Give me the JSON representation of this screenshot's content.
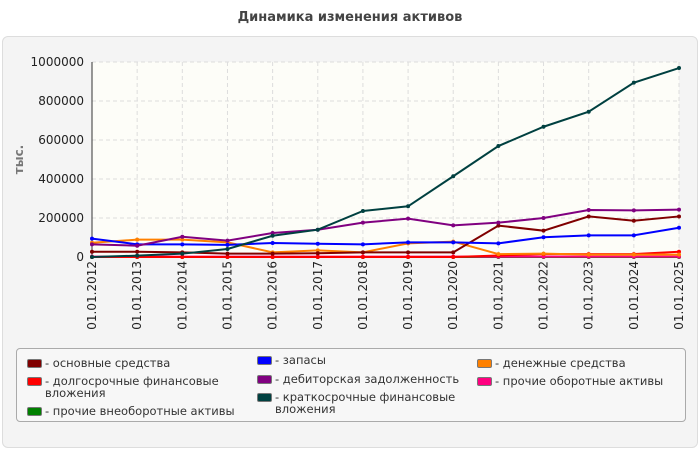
{
  "chart_data": {
    "type": "line",
    "title": "Динамика изменения активов",
    "ylabel": "тыс.",
    "xlabel": "",
    "ylim": [
      0,
      1000000
    ],
    "yticks": [
      "0",
      "200000",
      "400000",
      "600000",
      "800000",
      "1000000"
    ],
    "grid": true,
    "legend_position": "bottom",
    "categories": [
      "01.01.2012",
      "01.01.2013",
      "01.01.2014",
      "01.01.2015",
      "01.01.2016",
      "01.01.2017",
      "01.01.2018",
      "01.01.2019",
      "01.01.2020",
      "01.01.2021",
      "01.01.2022",
      "01.01.2023",
      "01.01.2024",
      "01.01.2025"
    ],
    "series": [
      {
        "name": "основные средства",
        "color": "#800000",
        "values": [
          27000,
          27000,
          24000,
          17000,
          17000,
          19000,
          24000,
          24000,
          24000,
          161000,
          135000,
          208000,
          186000,
          208000
        ]
      },
      {
        "name": "долгосрочные финансовые вложения",
        "color": "#ff0000",
        "values": [
          0,
          0,
          0,
          0,
          0,
          0,
          0,
          0,
          0,
          8000,
          15000,
          15000,
          15000,
          27000
        ]
      },
      {
        "name": "прочие внеоборотные активы",
        "color": "#008000",
        "values": [
          0,
          0,
          0,
          0,
          0,
          0,
          0,
          0,
          0,
          0,
          0,
          0,
          0,
          0
        ]
      },
      {
        "name": "запасы",
        "color": "#0000ff",
        "values": [
          94000,
          65000,
          65000,
          62000,
          72000,
          68000,
          65000,
          75000,
          75000,
          70000,
          101000,
          111000,
          111000,
          150000
        ]
      },
      {
        "name": "дебиторская задолженность",
        "color": "#800080",
        "values": [
          65000,
          58000,
          104000,
          84000,
          123000,
          140000,
          176000,
          197000,
          162000,
          176000,
          200000,
          241000,
          239000,
          243000
        ]
      },
      {
        "name": "краткосрочные финансовые вложения",
        "color": "#004040",
        "values": [
          0,
          7000,
          17000,
          41000,
          109000,
          140000,
          236000,
          260000,
          414000,
          569000,
          668000,
          745000,
          894000,
          969000
        ]
      },
      {
        "name": "денежные средства",
        "color": "#ff8000",
        "values": [
          73000,
          89000,
          89000,
          75000,
          24000,
          34000,
          24000,
          70000,
          79000,
          15000,
          17000,
          12000,
          12000,
          12000
        ]
      },
      {
        "name": "прочие оборотные активы",
        "color": "#ff0080",
        "values": [
          2000,
          2000,
          2000,
          2000,
          2000,
          2000,
          2000,
          2000,
          2000,
          2000,
          2000,
          2000,
          2000,
          2000
        ]
      }
    ]
  }
}
